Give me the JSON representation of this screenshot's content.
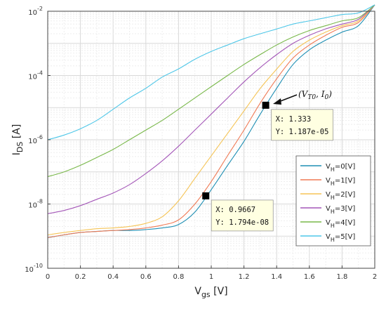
{
  "chart_data": {
    "type": "line",
    "title": "",
    "xlabel": "V",
    "xlabel_sub": "gs",
    "xlabel_unit": " [V]",
    "ylabel": "I",
    "ylabel_sub": "DS",
    "ylabel_unit": " [A]",
    "xlim": [
      0,
      2
    ],
    "ylim_log10": [
      -10,
      -2
    ],
    "yscale": "log",
    "grid": true,
    "x_ticks": [
      "0",
      "0.2",
      "0.4",
      "0.6",
      "0.8",
      "1",
      "1.2",
      "1.4",
      "1.6",
      "1.8",
      "2"
    ],
    "y_ticks": [
      {
        "base": "10",
        "exp": "-10"
      },
      {
        "base": "10",
        "exp": "-8"
      },
      {
        "base": "10",
        "exp": "-6"
      },
      {
        "base": "10",
        "exp": "-4"
      },
      {
        "base": "10",
        "exp": "-2"
      }
    ],
    "legend_position": "lower-right",
    "x": [
      0,
      0.1,
      0.2,
      0.3,
      0.4,
      0.5,
      0.6,
      0.7,
      0.8,
      0.9,
      1.0,
      1.1,
      1.2,
      1.3,
      1.4,
      1.5,
      1.6,
      1.7,
      1.8,
      1.9,
      2.0
    ],
    "series": [
      {
        "name": "V",
        "sub": "H",
        "suffix": "=0[V]",
        "color": "#1f8fb4",
        "y": [
          8.9e-10,
          1.1e-09,
          1.3e-09,
          1.4e-09,
          1.5e-09,
          1.5e-09,
          1.6e-09,
          1.8e-09,
          2.3e-09,
          5.6e-09,
          2.8e-08,
          1.6e-07,
          8.9e-07,
          6.3e-06,
          4e-05,
          0.00022,
          0.00063,
          0.00126,
          0.00224,
          0.00355,
          0.0158
        ]
      },
      {
        "name": "V",
        "sub": "H",
        "suffix": "=1[V]",
        "color": "#f07a55",
        "y": [
          9e-10,
          1.1e-09,
          1.3e-09,
          1.4e-09,
          1.5e-09,
          1.6e-09,
          1.8e-09,
          2.2e-09,
          3.2e-09,
          1e-08,
          5e-08,
          3.2e-07,
          2e-06,
          1.4e-05,
          7.9e-05,
          0.00035,
          0.00089,
          0.00178,
          0.00316,
          0.00447,
          0.0158
        ]
      },
      {
        "name": "V",
        "sub": "H",
        "suffix": "=2[V]",
        "color": "#f5c456",
        "y": [
          1.1e-09,
          1.3e-09,
          1.5e-09,
          1.7e-09,
          1.8e-09,
          2e-09,
          2.5e-09,
          4e-09,
          1.26e-08,
          6.3e-08,
          3.16e-07,
          1.58e-06,
          7.9e-06,
          3.98e-05,
          0.000158,
          0.00056,
          0.00126,
          0.00224,
          0.00355,
          0.005,
          0.0158
        ]
      },
      {
        "name": "V",
        "sub": "H",
        "suffix": "=3[V]",
        "color": "#a457b8",
        "y": [
          5e-09,
          6.3e-09,
          8.9e-09,
          1.4e-08,
          2.2e-08,
          4e-08,
          8.9e-08,
          2.2e-07,
          6.3e-07,
          2e-06,
          6.3e-06,
          2e-05,
          6.3e-05,
          0.000178,
          0.000447,
          0.001,
          0.00178,
          0.00282,
          0.00398,
          0.0056,
          0.0158
        ]
      },
      {
        "name": "V",
        "sub": "H",
        "suffix": "=4[V]",
        "color": "#79b84a",
        "y": [
          7.1e-08,
          1e-07,
          1.6e-07,
          2.8e-07,
          5e-07,
          1e-06,
          2e-06,
          4e-06,
          8.9e-06,
          2e-05,
          4.5e-05,
          0.0001,
          0.00022,
          0.00045,
          0.00089,
          0.00158,
          0.00251,
          0.00355,
          0.005,
          0.0063,
          0.0158
        ]
      },
      {
        "name": "V",
        "sub": "H",
        "suffix": "=5[V]",
        "color": "#4fc7e8",
        "y": [
          1e-06,
          1.4e-06,
          2.2e-06,
          4e-06,
          8.9e-06,
          2e-05,
          4e-05,
          8.9e-05,
          0.00016,
          0.00032,
          0.00056,
          0.00089,
          0.0014,
          0.002,
          0.0028,
          0.00398,
          0.005,
          0.0063,
          0.0079,
          0.0089,
          0.0158
        ]
      }
    ],
    "datatips": [
      {
        "x": 0.9667,
        "y": 1.794e-08,
        "x_text": "X: 0.9667",
        "y_text": "Y: 1.794e-08"
      },
      {
        "x": 1.333,
        "y": 1.187e-05,
        "x_text": "X: 1.333",
        "y_text": "Y: 1.187e-05"
      }
    ],
    "annotation": {
      "text_main": "(V",
      "text_sub": "T0",
      "text_tail": ", I",
      "text_sub2": "0",
      "text_end": ")"
    }
  }
}
